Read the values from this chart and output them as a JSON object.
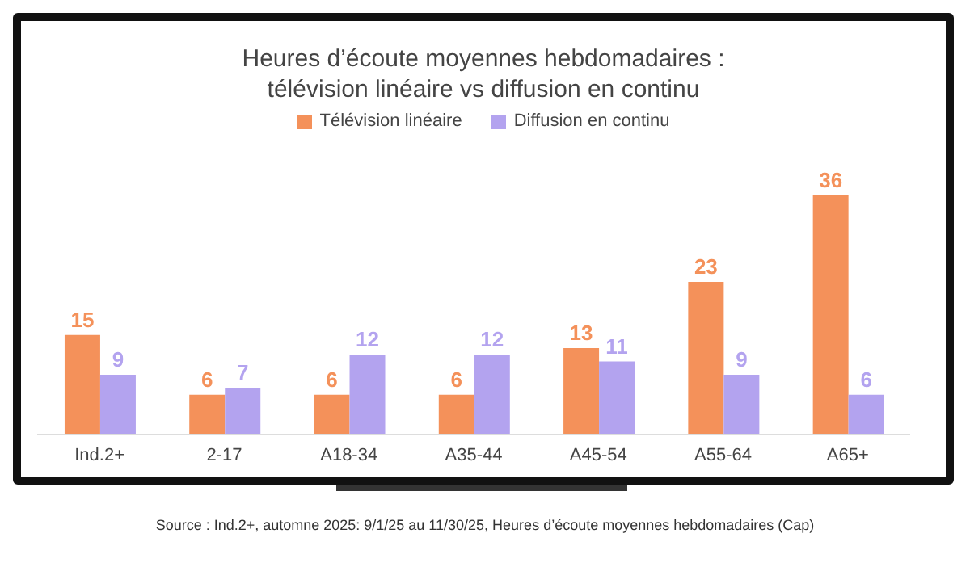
{
  "chart_data": {
    "type": "bar",
    "title": "Heures d’écoute moyennes hebdomadaires :\ntélévision linéaire vs diffusion en continu",
    "categories": [
      "Ind.2+",
      "2-17",
      "A18-34",
      "A35-44",
      "A45-54",
      "A55-64",
      "A65+"
    ],
    "series": [
      {
        "name": "Télévision linéaire",
        "color": "#f4915a",
        "values": [
          15,
          6,
          6,
          6,
          13,
          23,
          36
        ]
      },
      {
        "name": "Diffusion en continu",
        "color": "#b3a3ef",
        "values": [
          9,
          7,
          12,
          12,
          11,
          9,
          6
        ]
      }
    ],
    "data_labels": true,
    "legend": "top",
    "grid": false,
    "annotations": [
      "Source : Ind.2+, automne 2025: 9/1/25 au 11/30/25, Heures d’écoute moyennes hebdomadaires (Cap)"
    ]
  }
}
